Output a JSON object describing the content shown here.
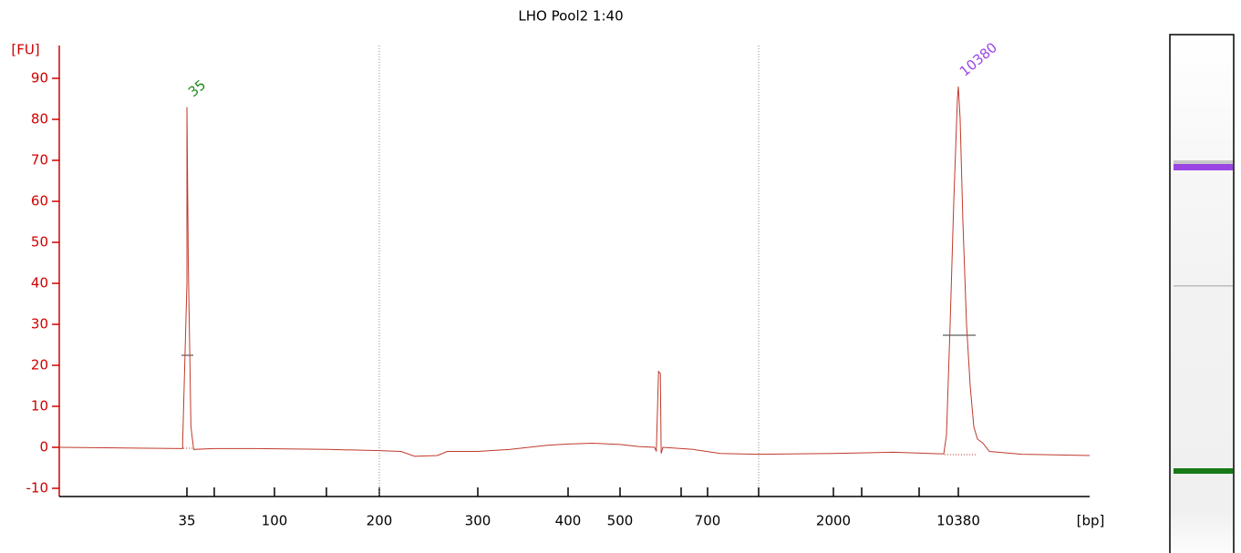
{
  "chart_data": {
    "type": "line",
    "title": "LHO Pool2 1:40",
    "ylabel": "[FU]",
    "xlabel": "[bp]",
    "x": [
      5,
      23,
      34,
      34,
      35,
      35,
      36,
      38,
      40,
      55,
      86,
      151,
      200,
      222,
      236,
      259,
      269,
      300,
      336,
      377,
      400,
      447,
      500,
      542,
      579,
      583,
      588,
      592,
      594,
      598,
      667,
      832,
      1209,
      2000,
      6037,
      9401,
      9585,
      9829,
      10074,
      10319,
      10380,
      10430,
      10506,
      10606,
      10707,
      10807,
      10908,
      11059,
      11235,
      12115,
      14000
    ],
    "series": [
      {
        "color": "#c0392b",
        "values": [
          0,
          -0.2,
          -0.3,
          1,
          40,
          83,
          45,
          5,
          -0.5,
          -0.3,
          -0.3,
          -0.5,
          -0.8,
          -1,
          -2.2,
          -2,
          -1,
          -1,
          -0.5,
          0.5,
          0.8,
          1,
          0.7,
          0.2,
          0,
          -1,
          18.5,
          18,
          -1.5,
          0,
          -0.5,
          -1.5,
          -1.7,
          -1.5,
          -1.2,
          -1.6,
          3,
          30,
          60,
          85,
          88,
          80,
          55,
          30,
          15,
          5,
          2,
          1,
          -1,
          -1.7,
          -2
        ]
      }
    ],
    "annotations": [
      {
        "text": "35",
        "x": 35,
        "y": 83,
        "color": "#1a8a1a"
      },
      {
        "text": "10380",
        "x": 10380,
        "y": 88,
        "color": "#9b45e4"
      }
    ],
    "xlim": [
      5,
      14000
    ],
    "xticks": [
      35,
      100,
      200,
      300,
      400,
      500,
      700,
      2000,
      10380
    ],
    "ylim": [
      -12,
      98
    ],
    "yticks": [
      -10,
      0,
      10,
      20,
      30,
      40,
      50,
      60,
      70,
      80,
      90
    ],
    "axis_color": "#d00000"
  }
}
